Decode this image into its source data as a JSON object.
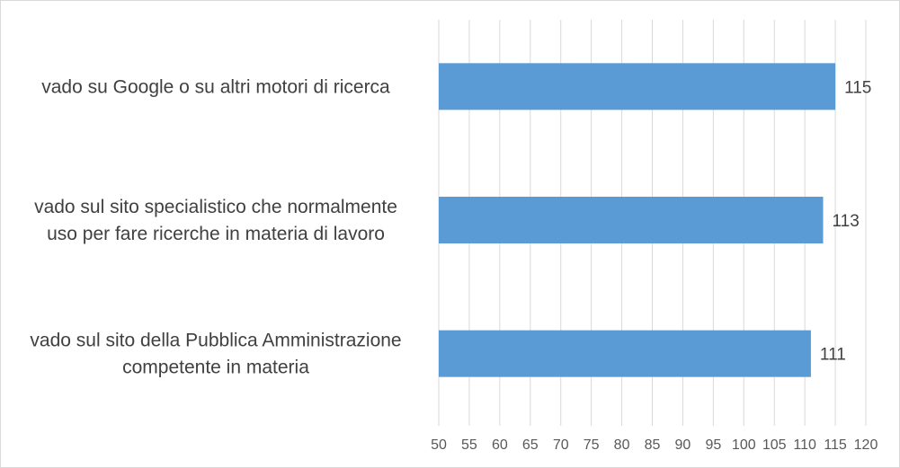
{
  "chart_data": {
    "type": "bar",
    "orientation": "horizontal",
    "categories": [
      [
        "vado su Google o su altri motori di ricerca"
      ],
      [
        "vado sul sito specialistico che normalmente",
        "uso per fare ricerche in materia di lavoro"
      ],
      [
        "vado sul sito della Pubblica Amministrazione",
        "competente in materia"
      ]
    ],
    "values": [
      115,
      113,
      111
    ],
    "data_labels": [
      "115",
      "113",
      "111"
    ],
    "xlim": [
      50,
      120
    ],
    "x_ticks": [
      "50",
      "55",
      "60",
      "65",
      "70",
      "75",
      "80",
      "85",
      "90",
      "95",
      "100",
      "105",
      "110",
      "115",
      "120"
    ],
    "gridlines": "vertical",
    "bar_color": "#5b9bd5",
    "grid_color": "#d9d9d9",
    "title": "",
    "xlabel": "",
    "ylabel": ""
  }
}
